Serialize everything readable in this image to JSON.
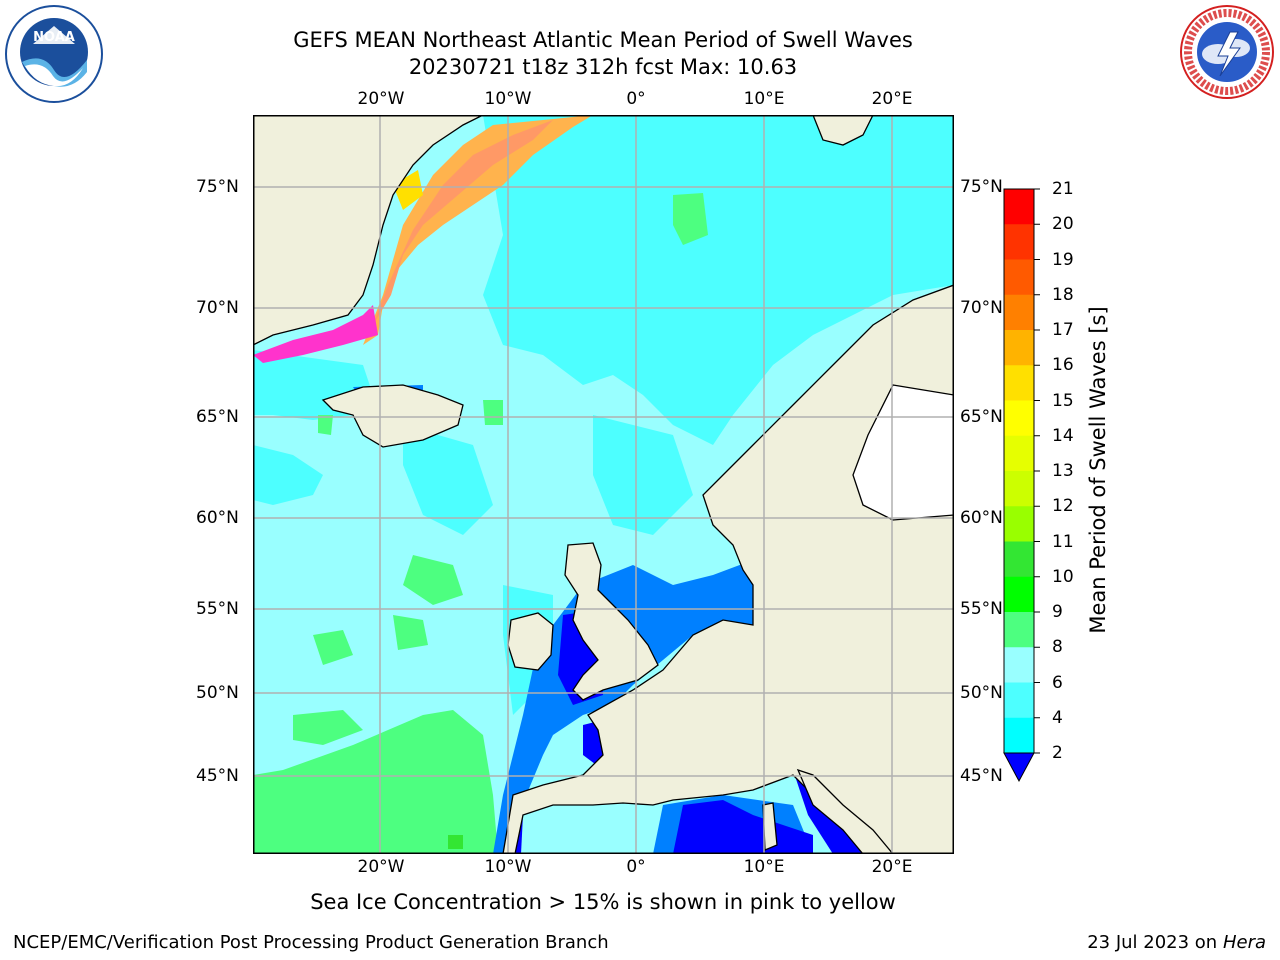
{
  "title_line1": "GEFS MEAN Northeast Atlantic Mean Period of Swell Waves",
  "title_line2": "20230721 t18z 312h fcst   Max: 10.63",
  "caption": "Sea Ice Concentration > 15% is shown in pink to yellow",
  "footer_left": "NCEP/EMC/Verification Post Processing Product Generation Branch",
  "footer_date": "23 Jul 2023 on ",
  "footer_host": "Hera",
  "logos": {
    "left": "NOAA",
    "right": "NATIONAL WEATHER SERVICE"
  },
  "map": {
    "lon_labels": [
      "20°W",
      "10°W",
      "0°",
      "10°E",
      "20°E"
    ],
    "lat_labels": [
      "75°N",
      "70°N",
      "65°N",
      "60°N",
      "55°N",
      "50°N",
      "45°N"
    ],
    "ocean_color": "#99ffff",
    "land_color": "#f0f0dc"
  },
  "colorbar": {
    "title": "Mean Period of Swell Waves [s]",
    "ticks": [
      "21",
      "20",
      "19",
      "18",
      "17",
      "16",
      "15",
      "14",
      "13",
      "12",
      "11",
      "10",
      "9",
      "8",
      "6",
      "4",
      "2"
    ],
    "colors": [
      "#ff0000",
      "#ff3300",
      "#ff5a00",
      "#ff8000",
      "#ffb300",
      "#ffe000",
      "#ffff00",
      "#e6ff00",
      "#ccff00",
      "#99ff00",
      "#33e633",
      "#00ff00",
      "#4dff80",
      "#99ffff",
      "#4dffff",
      "#00ffff",
      "#00e6ff",
      "#0080ff",
      "#0000ff"
    ]
  }
}
